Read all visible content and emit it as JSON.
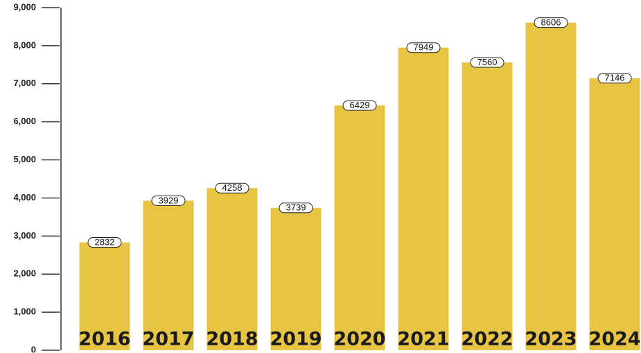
{
  "chart_data": {
    "type": "bar",
    "categories": [
      "2016",
      "2017",
      "2018",
      "2019",
      "2020",
      "2021",
      "2022",
      "2023",
      "2024"
    ],
    "values": [
      2832,
      3929,
      4258,
      3739,
      6429,
      7949,
      7560,
      8606,
      7146
    ],
    "color": "#e8c443",
    "ylim": [
      0,
      9000
    ],
    "yticks": [
      0,
      {
        "value": 1000,
        "label": "1,000"
      },
      {
        "value": 2000,
        "label": "2,000"
      },
      {
        "value": 3000,
        "label": "3,000"
      },
      {
        "value": 4000,
        "label": "4,000"
      },
      {
        "value": 5000,
        "label": "5,000"
      },
      {
        "value": 6000,
        "label": "6,000"
      },
      {
        "value": 7000,
        "label": "7,000"
      },
      {
        "value": 8000,
        "label": "8,000"
      },
      {
        "value": 9000,
        "label": "9,000"
      }
    ]
  }
}
